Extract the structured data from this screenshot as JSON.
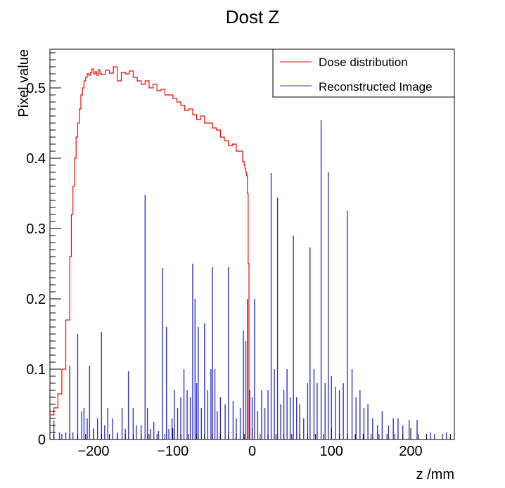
{
  "chart_data": {
    "type": "line",
    "title": "Dost Z",
    "xlabel": "z /mm",
    "ylabel": "Pixel value",
    "xlim": [
      -255,
      255
    ],
    "ylim": [
      0,
      0.555
    ],
    "x_ticks": [
      -200,
      -100,
      0,
      100,
      200
    ],
    "x_tick_labels": [
      "−200",
      "−100",
      "0",
      "100",
      "200"
    ],
    "y_ticks": [
      0,
      0.1,
      0.2,
      0.3,
      0.4,
      0.5
    ],
    "y_tick_labels": [
      "0",
      "0.1",
      "0.2",
      "0.3",
      "0.4",
      "0.5"
    ],
    "grid": false,
    "legend_position": "top-right",
    "series": [
      {
        "name": "Dose distribution",
        "color": "#ff0000",
        "style": "step",
        "x": [
          -255,
          -250,
          -245,
          -240,
          -235,
          -230,
          -228,
          -226,
          -224,
          -222,
          -220,
          -218,
          -216,
          -214,
          -212,
          -210,
          -208,
          -206,
          -204,
          -202,
          -200,
          -198,
          -196,
          -194,
          -192,
          -190,
          -185,
          -180,
          -175,
          -170,
          -165,
          -160,
          -155,
          -150,
          -145,
          -140,
          -135,
          -130,
          -125,
          -120,
          -115,
          -110,
          -105,
          -100,
          -95,
          -90,
          -85,
          -80,
          -75,
          -70,
          -65,
          -60,
          -55,
          -50,
          -45,
          -40,
          -35,
          -30,
          -25,
          -20,
          -15,
          -12,
          -10,
          -9,
          -8,
          -7,
          -6,
          -5,
          -4
        ],
        "y": [
          0.035,
          0.045,
          0.065,
          0.1,
          0.17,
          0.26,
          0.32,
          0.36,
          0.4,
          0.43,
          0.45,
          0.47,
          0.49,
          0.5,
          0.51,
          0.515,
          0.52,
          0.518,
          0.522,
          0.527,
          0.52,
          0.523,
          0.518,
          0.526,
          0.52,
          0.519,
          0.525,
          0.521,
          0.53,
          0.51,
          0.522,
          0.52,
          0.524,
          0.515,
          0.51,
          0.505,
          0.51,
          0.5,
          0.505,
          0.496,
          0.498,
          0.49,
          0.49,
          0.485,
          0.48,
          0.475,
          0.468,
          0.47,
          0.462,
          0.455,
          0.46,
          0.45,
          0.45,
          0.443,
          0.44,
          0.43,
          0.425,
          0.418,
          0.42,
          0.41,
          0.41,
          0.395,
          0.39,
          0.385,
          0.38,
          0.375,
          0.35,
          0.25,
          0.0
        ]
      },
      {
        "name": "Reconstructed Image",
        "color": "#3333cc",
        "style": "spikes",
        "x": [
          -250,
          -243,
          -235,
          -230,
          -226,
          -220,
          -215,
          -212,
          -208,
          -205,
          -200,
          -195,
          -190,
          -186,
          -182,
          -176,
          -170,
          -164,
          -160,
          -156,
          -150,
          -146,
          -140,
          -135,
          -132,
          -128,
          -124,
          -118,
          -113,
          -108,
          -105,
          -101,
          -98,
          -94,
          -90,
          -86,
          -82,
          -78,
          -75,
          -72,
          -70,
          -68,
          -64,
          -60,
          -56,
          -52,
          -50,
          -47,
          -44,
          -40,
          -34,
          -30,
          -24,
          -20,
          -15,
          -11,
          -8,
          -6,
          -3,
          0,
          3,
          7,
          12,
          16,
          20,
          24,
          28,
          32,
          36,
          40,
          44,
          48,
          52,
          56,
          60,
          65,
          70,
          73,
          78,
          82,
          87,
          92,
          96,
          100,
          105,
          110,
          115,
          120,
          126,
          131,
          136,
          141,
          146,
          152,
          158,
          164,
          172,
          178,
          184,
          190,
          198,
          208,
          225,
          245
        ],
        "y": [
          0.027,
          0.01,
          0.01,
          0.105,
          0.01,
          0.15,
          0.04,
          0.045,
          0.03,
          0.105,
          0.015,
          0.03,
          0.153,
          0.02,
          0.045,
          0.03,
          0.01,
          0.045,
          0.015,
          0.097,
          0.045,
          0.02,
          0.02,
          0.348,
          0.045,
          0.015,
          0.025,
          0.012,
          0.244,
          0.16,
          0.015,
          0.03,
          0.07,
          0.045,
          0.06,
          0.1,
          0.07,
          0.06,
          0.25,
          0.2,
          0.08,
          0.16,
          0.045,
          0.165,
          0.07,
          0.1,
          0.245,
          0.1,
          0.04,
          0.06,
          0.05,
          0.245,
          0.055,
          0.03,
          0.045,
          0.155,
          0.14,
          0.2,
          0.07,
          0.06,
          0.2,
          0.04,
          0.07,
          0.045,
          0.07,
          0.379,
          0.1,
          0.344,
          0.05,
          0.07,
          0.1,
          0.06,
          0.29,
          0.06,
          0.05,
          0.03,
          0.08,
          0.273,
          0.1,
          0.08,
          0.454,
          0.08,
          0.38,
          0.09,
          0.075,
          0.07,
          0.08,
          0.325,
          0.1,
          0.06,
          0.07,
          0.045,
          0.05,
          0.03,
          0.02,
          0.04,
          0.02,
          0.03,
          0.03,
          0.02,
          0.028,
          0.028,
          0.01,
          0.01
        ]
      }
    ]
  }
}
